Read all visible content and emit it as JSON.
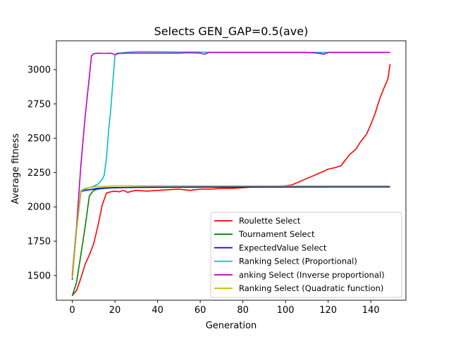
{
  "chart_data": {
    "type": "line",
    "title": "Selects GEN_GAP=0.5(ave)",
    "xlabel": "Generation",
    "ylabel": "Average fitness",
    "xlim": [
      -7.45,
      156.45
    ],
    "ylim": [
      1320,
      3210
    ],
    "xticks": [
      0,
      20,
      40,
      60,
      80,
      100,
      120,
      140
    ],
    "yticks": [
      1500,
      1750,
      2000,
      2250,
      2500,
      2750,
      3000
    ],
    "grid": false,
    "legend_position": "lower right",
    "series": [
      {
        "name": "Roulette Select",
        "color": "#ff0000",
        "x": [
          0,
          2,
          4,
          6,
          8,
          10,
          12,
          14,
          16,
          18,
          20,
          22,
          24,
          26,
          28,
          30,
          35,
          40,
          45,
          50,
          55,
          60,
          65,
          70,
          75,
          80,
          85,
          90,
          95,
          100,
          103,
          106,
          109,
          112,
          115,
          118,
          120,
          123,
          126,
          128,
          130,
          133,
          135,
          138,
          140,
          142,
          144,
          146,
          148,
          149
        ],
        "y": [
          1355,
          1390,
          1480,
          1580,
          1650,
          1730,
          1860,
          2010,
          2100,
          2110,
          2115,
          2110,
          2120,
          2105,
          2115,
          2120,
          2115,
          2120,
          2125,
          2130,
          2120,
          2130,
          2130,
          2135,
          2135,
          2140,
          2145,
          2145,
          2150,
          2155,
          2160,
          2180,
          2200,
          2220,
          2240,
          2260,
          2275,
          2285,
          2300,
          2340,
          2380,
          2420,
          2470,
          2530,
          2600,
          2680,
          2780,
          2860,
          2930,
          3040
        ]
      },
      {
        "name": "Tournament Select",
        "color": "#008000",
        "x": [
          0,
          2,
          4,
          6,
          8,
          10,
          12,
          15,
          20,
          30,
          40,
          60,
          80,
          100,
          120,
          140,
          149
        ],
        "y": [
          1350,
          1450,
          1650,
          1850,
          2080,
          2120,
          2130,
          2135,
          2140,
          2142,
          2143,
          2144,
          2144,
          2145,
          2145,
          2145,
          2145
        ]
      },
      {
        "name": "ExpectedValue Select",
        "color": "#0000ff",
        "x": [
          0,
          2,
          4,
          6,
          8,
          10,
          12,
          15,
          20,
          30,
          40,
          60,
          80,
          100,
          120,
          140,
          149
        ],
        "y": [
          1470,
          1830,
          2110,
          2120,
          2125,
          2130,
          2135,
          2138,
          2140,
          2142,
          2143,
          2144,
          2145,
          2145,
          2146,
          2146,
          2146
        ]
      },
      {
        "name": "Ranking Select (Proportional)",
        "color": "#00bfbf",
        "x": [
          0,
          2,
          4,
          6,
          8,
          10,
          12,
          14,
          15,
          16,
          17,
          18,
          19,
          20,
          21,
          22,
          25,
          30,
          40,
          50,
          60,
          65,
          70,
          80,
          90,
          100,
          110,
          120,
          130,
          140,
          149
        ],
        "y": [
          1500,
          1850,
          2110,
          2130,
          2140,
          2150,
          2165,
          2200,
          2230,
          2350,
          2550,
          2700,
          2900,
          3100,
          3120,
          3120,
          3125,
          3130,
          3130,
          3128,
          3128,
          3125,
          3125,
          3125,
          3125,
          3125,
          3125,
          3125,
          3125,
          3125,
          3125
        ]
      },
      {
        "name": "anking Select (Inverse proportional)",
        "color": "#bf00bf",
        "x": [
          0,
          2,
          4,
          6,
          8,
          9,
          10,
          12,
          15,
          18,
          20,
          22,
          25,
          30,
          40,
          50,
          55,
          60,
          62,
          64,
          70,
          80,
          90,
          100,
          110,
          115,
          118,
          120,
          130,
          137,
          140,
          149
        ],
        "y": [
          1500,
          1850,
          2300,
          2650,
          2950,
          3100,
          3115,
          3120,
          3118,
          3120,
          3110,
          3118,
          3120,
          3120,
          3120,
          3120,
          3123,
          3120,
          3112,
          3125,
          3125,
          3125,
          3125,
          3125,
          3125,
          3120,
          3112,
          3125,
          3125,
          3125,
          3125,
          3125
        ]
      },
      {
        "name": "Ranking Select (Quadratic function)",
        "color": "#bfbf00",
        "x": [
          0,
          2,
          4,
          6,
          8,
          10,
          12,
          15,
          20,
          30,
          40,
          60,
          80,
          100,
          120,
          140,
          149
        ],
        "y": [
          1480,
          1830,
          2120,
          2135,
          2140,
          2145,
          2148,
          2150,
          2152,
          2153,
          2153,
          2153,
          2153,
          2153,
          2153,
          2153,
          2153
        ]
      }
    ]
  }
}
